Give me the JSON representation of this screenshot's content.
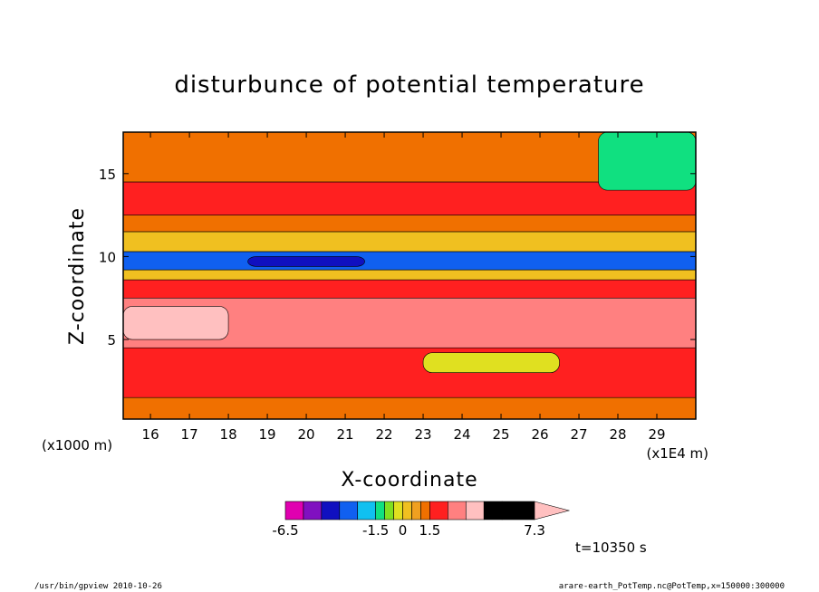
{
  "chart_data": {
    "type": "heatmap",
    "title": "disturbunce of potential temperature",
    "xlabel": "X-coordinate",
    "ylabel": "Z-coordinate",
    "x_unit_left": "(x1000 m)",
    "x_unit_right": "(x1E4 m)",
    "xlim": [
      15.3,
      30.0
    ],
    "ylim": [
      0.2,
      17.5
    ],
    "x_ticks": [
      16,
      17,
      18,
      19,
      20,
      21,
      22,
      23,
      24,
      25,
      26,
      27,
      28,
      29
    ],
    "y_ticks": [
      5,
      10,
      15
    ],
    "colorbar": {
      "levels": [
        -6.5,
        -5.5,
        -4.5,
        -3.5,
        -2.5,
        -1.5,
        -1.0,
        -0.5,
        0,
        0.5,
        1.0,
        1.5,
        2.5,
        3.5,
        4.5,
        5.5,
        7.3
      ],
      "labels": [
        "-6.5",
        "-1.5",
        "0",
        "1.5",
        "7.3"
      ],
      "colors": [
        "#e000b0",
        "#8010c0",
        "#1010c0",
        "#1060f0",
        "#10c0f0",
        "#10e080",
        "#80e020",
        "#e0e020",
        "#f0c020",
        "#f0a020",
        "#f07000",
        "#ff2020",
        "#ff8080",
        "#ffc0c0"
      ]
    },
    "bands": [
      {
        "z": [
          0.2,
          1.5
        ],
        "value": 1.2
      },
      {
        "z": [
          1.5,
          4.5
        ],
        "value": 1.8
      },
      {
        "z": [
          4.5,
          7.5
        ],
        "value": 2.8
      },
      {
        "z": [
          7.5,
          8.6
        ],
        "value": 1.6
      },
      {
        "z": [
          8.6,
          9.2
        ],
        "value": 0.2
      },
      {
        "z": [
          9.2,
          10.3
        ],
        "value": -3.2
      },
      {
        "z": [
          10.3,
          11.5
        ],
        "value": 0.0
      },
      {
        "z": [
          11.5,
          12.5
        ],
        "value": 1.4
      },
      {
        "z": [
          12.5,
          14.5
        ],
        "value": 2.2
      },
      {
        "z": [
          14.5,
          17.5
        ],
        "value": 1.3
      }
    ],
    "features": [
      {
        "x": [
          18.5,
          21.5
        ],
        "z": [
          9.4,
          10.0
        ],
        "value": -4.5
      },
      {
        "x": [
          27.5,
          30.0
        ],
        "z": [
          14.0,
          17.5
        ],
        "value": -1.2
      },
      {
        "x": [
          23.0,
          26.5
        ],
        "z": [
          3.0,
          4.2
        ],
        "value": -0.5
      },
      {
        "x": [
          15.3,
          18.0
        ],
        "z": [
          5.0,
          7.0
        ],
        "value": 3.8
      }
    ]
  },
  "annotations": {
    "time": "t=10350 s",
    "footer_left": "/usr/bin/gpview   2010-10-26",
    "footer_right": "arare-earth_PotTemp.nc@PotTemp,x=150000:300000"
  }
}
